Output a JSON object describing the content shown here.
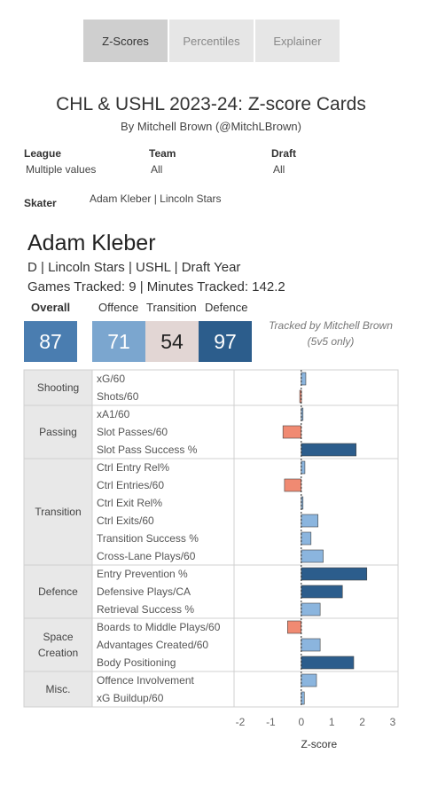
{
  "tabs": [
    "Z-Scores",
    "Percentiles",
    "Explainer"
  ],
  "title": "CHL & USHL 2023-24: Z-score Cards",
  "subtitle": "By Mitchell Brown (@MitchLBrown)",
  "filters": {
    "league_label": "League",
    "league_value": "Multiple values",
    "team_label": "Team",
    "team_value": "All",
    "draft_label": "Draft",
    "draft_value": "All",
    "skater_label": "Skater",
    "skater_value": "Adam Kleber | Lincoln Stars"
  },
  "player": {
    "name": "Adam Kleber",
    "info_line1": "D | Lincoln Stars | USHL | Draft Year",
    "info_line2": "Games Tracked: 9 | Minutes Tracked: 142.2"
  },
  "ratings": {
    "overall_label": "Overall",
    "overall": "87",
    "offence_label": "Offence",
    "offence": "71",
    "transition_label": "Transition",
    "transition": "54",
    "defence_label": "Defence",
    "defence": "97",
    "colors": {
      "overall": "#4a7db0",
      "offence": "#7ba6cf",
      "transition": "#e2d6d4",
      "defence": "#2c5d8c"
    }
  },
  "tracked_note": [
    "Tracked by Mitchell Brown",
    "(5v5 only)"
  ],
  "chart_data": {
    "type": "bar",
    "orientation": "horizontal",
    "xlabel": "Z-score",
    "xlim": [
      -2,
      3
    ],
    "xticks": [
      "-2",
      "-1",
      "0",
      "1",
      "2",
      "3"
    ],
    "groups": [
      {
        "name": "Shooting",
        "metrics": [
          {
            "label": "xG/60",
            "value": 0.15
          },
          {
            "label": "Shots/60",
            "value": -0.05
          }
        ]
      },
      {
        "name": "Passing",
        "metrics": [
          {
            "label": "xA1/60",
            "value": 0.02
          },
          {
            "label": "Slot Passes/60",
            "value": -0.6
          },
          {
            "label": "Slot Pass Success %",
            "value": 1.8
          }
        ]
      },
      {
        "name": "Transition",
        "metrics": [
          {
            "label": "Ctrl Entry Rel%",
            "value": 0.12
          },
          {
            "label": "Ctrl Entries/60",
            "value": -0.55
          },
          {
            "label": "Ctrl Exit Rel%",
            "value": 0.03
          },
          {
            "label": "Ctrl Exits/60",
            "value": 0.55
          },
          {
            "label": "Transition Success %",
            "value": 0.32
          },
          {
            "label": "Cross-Lane Plays/60",
            "value": 0.72
          }
        ]
      },
      {
        "name": "Defence",
        "metrics": [
          {
            "label": "Entry Prevention %",
            "value": 2.15
          },
          {
            "label": "Defensive Plays/CA",
            "value": 1.35
          },
          {
            "label": "Retrieval Success %",
            "value": 0.62
          }
        ]
      },
      {
        "name": "Space Creation",
        "metrics": [
          {
            "label": "Boards to Middle Plays/60",
            "value": -0.45
          },
          {
            "label": "Advantages Created/60",
            "value": 0.62
          },
          {
            "label": "Body Positioning",
            "value": 1.72
          }
        ]
      },
      {
        "name": "Misc.",
        "metrics": [
          {
            "label": "Offence Involvement",
            "value": 0.5
          },
          {
            "label": "xG Buildup/60",
            "value": 0.1
          }
        ]
      }
    ]
  }
}
